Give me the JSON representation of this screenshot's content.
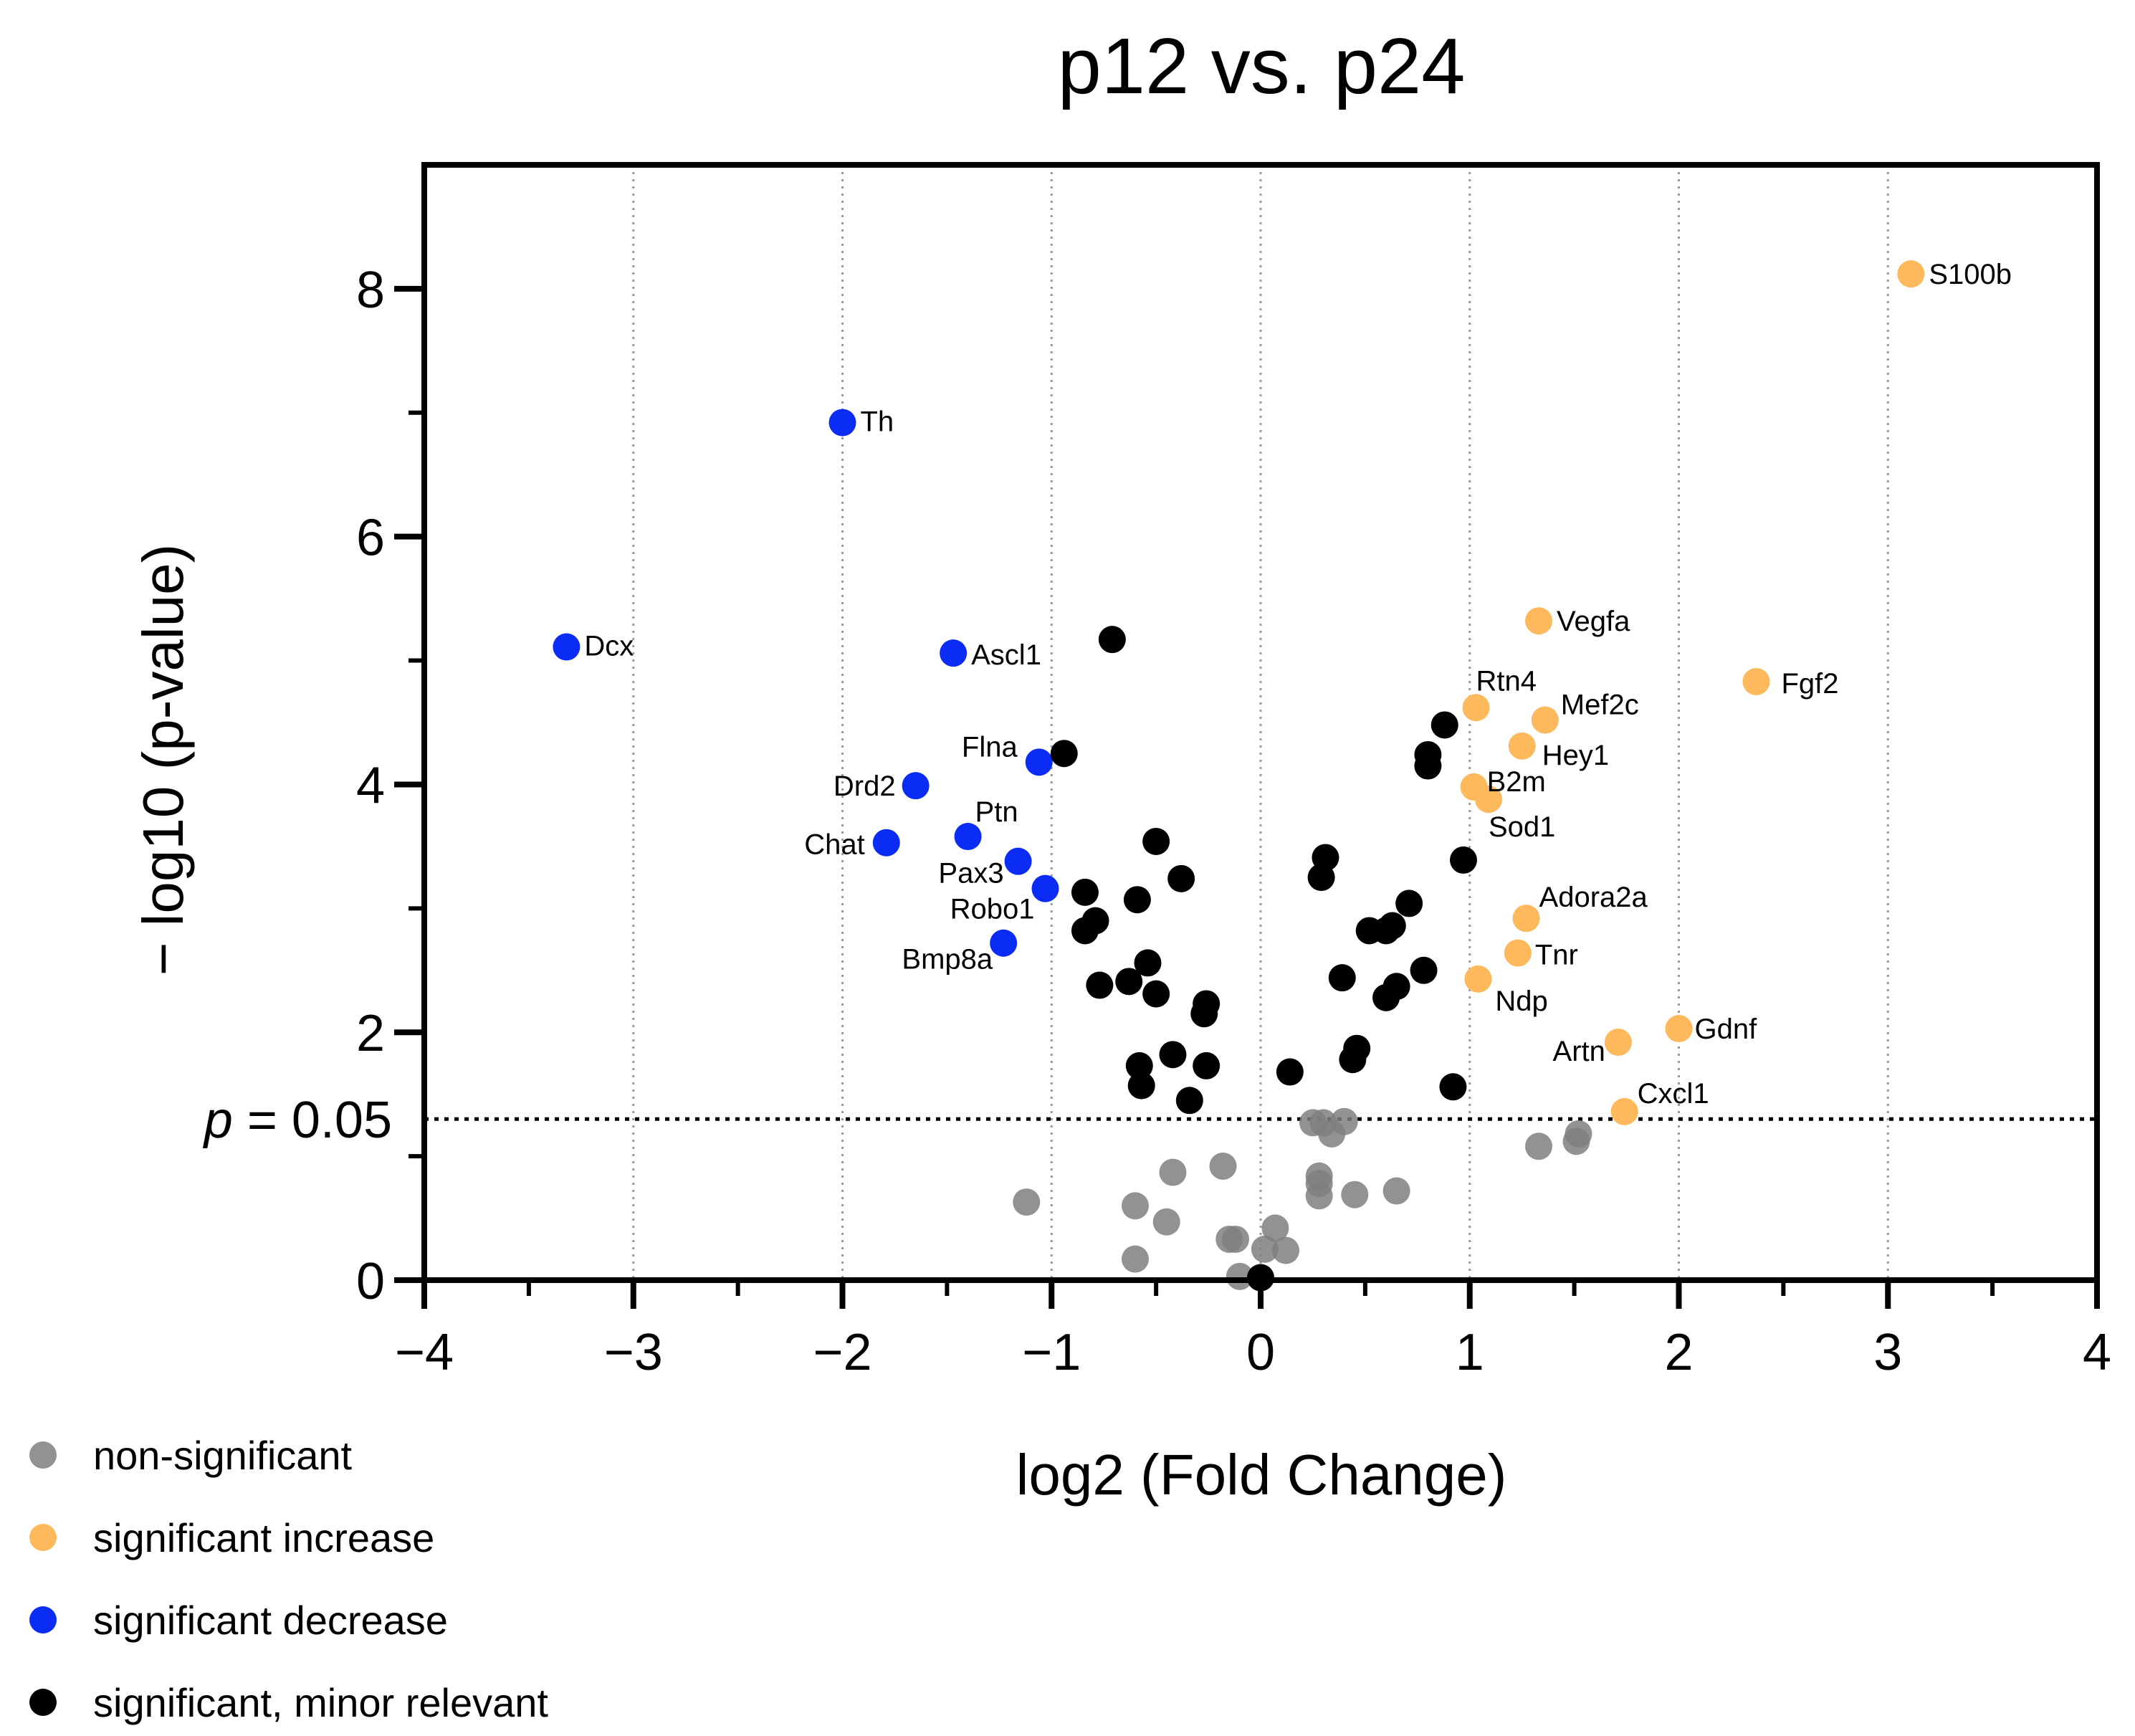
{
  "chart_data": {
    "type": "scatter",
    "title": "p12 vs. p24",
    "xlabel": "log2 (Fold Change)",
    "ylabel": "− log10 (p-value)",
    "xlim": [
      -4,
      4
    ],
    "ylim": [
      0,
      9
    ],
    "xticks": [
      {
        "value": -4,
        "label": "−4"
      },
      {
        "value": -3,
        "label": "−3"
      },
      {
        "value": -2,
        "label": "−2"
      },
      {
        "value": -1,
        "label": "−1"
      },
      {
        "value": 0,
        "label": "0"
      },
      {
        "value": 1,
        "label": "1"
      },
      {
        "value": 2,
        "label": "2"
      },
      {
        "value": 3,
        "label": "3"
      },
      {
        "value": 4,
        "label": "4"
      }
    ],
    "yticks": [
      {
        "value": 0,
        "label": "0"
      },
      {
        "value": 2,
        "label": "2"
      },
      {
        "value": 4,
        "label": "4"
      },
      {
        "value": 6,
        "label": "6"
      },
      {
        "value": 8,
        "label": "8"
      }
    ],
    "grid": "vertical dotted",
    "threshold": {
      "y": 1.3,
      "label_italic": "p",
      "label_rest": " = 0.05"
    },
    "legend": {
      "position": "bottom-left",
      "items": [
        {
          "label": "non-significant",
          "color": "#7f7f7f"
        },
        {
          "label": "significant increase",
          "color": "#fdb95c"
        },
        {
          "label": "significant decrease",
          "color": "#0a2cf5"
        },
        {
          "label": "significant, minor relevant",
          "color": "#000000"
        }
      ]
    },
    "series": [
      {
        "name": "non-significant",
        "color": "#7f7f7f",
        "points": [
          {
            "x": -1.12,
            "y": 0.63
          },
          {
            "x": -0.6,
            "y": 0.6
          },
          {
            "x": -0.6,
            "y": 0.17
          },
          {
            "x": -0.45,
            "y": 0.47
          },
          {
            "x": -0.42,
            "y": 0.87
          },
          {
            "x": -0.18,
            "y": 0.92
          },
          {
            "x": -0.15,
            "y": 0.33
          },
          {
            "x": -0.12,
            "y": 0.33
          },
          {
            "x": -0.1,
            "y": 0.03
          },
          {
            "x": 0.02,
            "y": 0.25
          },
          {
            "x": 0.07,
            "y": 0.42
          },
          {
            "x": 0.12,
            "y": 0.24
          },
          {
            "x": 0.25,
            "y": 1.27
          },
          {
            "x": 0.28,
            "y": 0.68
          },
          {
            "x": 0.28,
            "y": 0.78
          },
          {
            "x": 0.28,
            "y": 0.84
          },
          {
            "x": 0.3,
            "y": 1.27
          },
          {
            "x": 0.34,
            "y": 1.18
          },
          {
            "x": 0.4,
            "y": 1.28
          },
          {
            "x": 0.45,
            "y": 0.69
          },
          {
            "x": 0.65,
            "y": 0.72
          },
          {
            "x": 1.33,
            "y": 1.08
          },
          {
            "x": 1.51,
            "y": 1.12
          },
          {
            "x": 1.52,
            "y": 1.18
          }
        ]
      },
      {
        "name": "significant increase",
        "color": "#fdb95c",
        "points": [
          {
            "x": 3.11,
            "y": 8.12,
            "label": "S100b"
          },
          {
            "x": 1.33,
            "y": 5.32,
            "label": "Vegfa"
          },
          {
            "x": 2.37,
            "y": 4.83,
            "label": "Fgf2"
          },
          {
            "x": 1.03,
            "y": 4.62,
            "label": "Rtn4"
          },
          {
            "x": 1.36,
            "y": 4.52,
            "label": "Mef2c"
          },
          {
            "x": 1.25,
            "y": 4.31,
            "label": "Hey1"
          },
          {
            "x": 1.02,
            "y": 3.98,
            "label": "B2m"
          },
          {
            "x": 1.09,
            "y": 3.88,
            "label": "Sod1"
          },
          {
            "x": 1.27,
            "y": 2.92,
            "label": "Adora2a"
          },
          {
            "x": 1.23,
            "y": 2.64,
            "label": "Tnr"
          },
          {
            "x": 1.04,
            "y": 2.43,
            "label": "Ndp"
          },
          {
            "x": 2.0,
            "y": 2.03,
            "label": "Gdnf"
          },
          {
            "x": 1.71,
            "y": 1.92,
            "label": "Artn"
          },
          {
            "x": 1.74,
            "y": 1.36,
            "label": "Cxcl1"
          }
        ]
      },
      {
        "name": "significant decrease",
        "color": "#0a2cf5",
        "points": [
          {
            "x": -2.0,
            "y": 6.92,
            "label": "Th"
          },
          {
            "x": -3.32,
            "y": 5.11,
            "label": "Dcx"
          },
          {
            "x": -1.47,
            "y": 5.06,
            "label": "Ascl1"
          },
          {
            "x": -1.06,
            "y": 4.18,
            "label": "Flna"
          },
          {
            "x": -1.65,
            "y": 3.99,
            "label": "Drd2"
          },
          {
            "x": -1.4,
            "y": 3.58,
            "label": "Ptn"
          },
          {
            "x": -1.79,
            "y": 3.53,
            "label": "Chat"
          },
          {
            "x": -1.16,
            "y": 3.38,
            "label": "Pax3"
          },
          {
            "x": -1.03,
            "y": 3.16,
            "label": "Robo1"
          },
          {
            "x": -1.23,
            "y": 2.72,
            "label": "Bmp8a"
          }
        ]
      },
      {
        "name": "significant, minor relevant",
        "color": "#000000",
        "points": [
          {
            "x": -0.71,
            "y": 5.17
          },
          {
            "x": -0.94,
            "y": 4.25
          },
          {
            "x": -0.5,
            "y": 3.54
          },
          {
            "x": -0.38,
            "y": 3.24
          },
          {
            "x": -0.84,
            "y": 3.13
          },
          {
            "x": -0.59,
            "y": 3.07
          },
          {
            "x": -0.79,
            "y": 2.9
          },
          {
            "x": -0.84,
            "y": 2.82
          },
          {
            "x": -0.54,
            "y": 2.56
          },
          {
            "x": -0.63,
            "y": 2.41
          },
          {
            "x": -0.77,
            "y": 2.38
          },
          {
            "x": -0.5,
            "y": 2.31
          },
          {
            "x": -0.26,
            "y": 2.23
          },
          {
            "x": -0.27,
            "y": 2.15
          },
          {
            "x": -0.42,
            "y": 1.82
          },
          {
            "x": -0.58,
            "y": 1.73
          },
          {
            "x": -0.26,
            "y": 1.73
          },
          {
            "x": -0.57,
            "y": 1.57
          },
          {
            "x": -0.34,
            "y": 1.45
          },
          {
            "x": 0.0,
            "y": 0.02
          },
          {
            "x": 0.14,
            "y": 1.68
          },
          {
            "x": 0.29,
            "y": 3.25
          },
          {
            "x": 0.31,
            "y": 3.41
          },
          {
            "x": 0.39,
            "y": 2.44
          },
          {
            "x": 0.44,
            "y": 1.78
          },
          {
            "x": 0.46,
            "y": 1.87
          },
          {
            "x": 0.52,
            "y": 2.82
          },
          {
            "x": 0.6,
            "y": 2.82
          },
          {
            "x": 0.63,
            "y": 2.86
          },
          {
            "x": 0.71,
            "y": 3.04
          },
          {
            "x": 0.6,
            "y": 2.28
          },
          {
            "x": 0.65,
            "y": 2.37
          },
          {
            "x": 0.78,
            "y": 2.5
          },
          {
            "x": 0.8,
            "y": 4.24
          },
          {
            "x": 0.8,
            "y": 4.15
          },
          {
            "x": 0.88,
            "y": 4.48
          },
          {
            "x": 0.97,
            "y": 3.39
          },
          {
            "x": 0.92,
            "y": 1.56
          }
        ]
      }
    ]
  }
}
